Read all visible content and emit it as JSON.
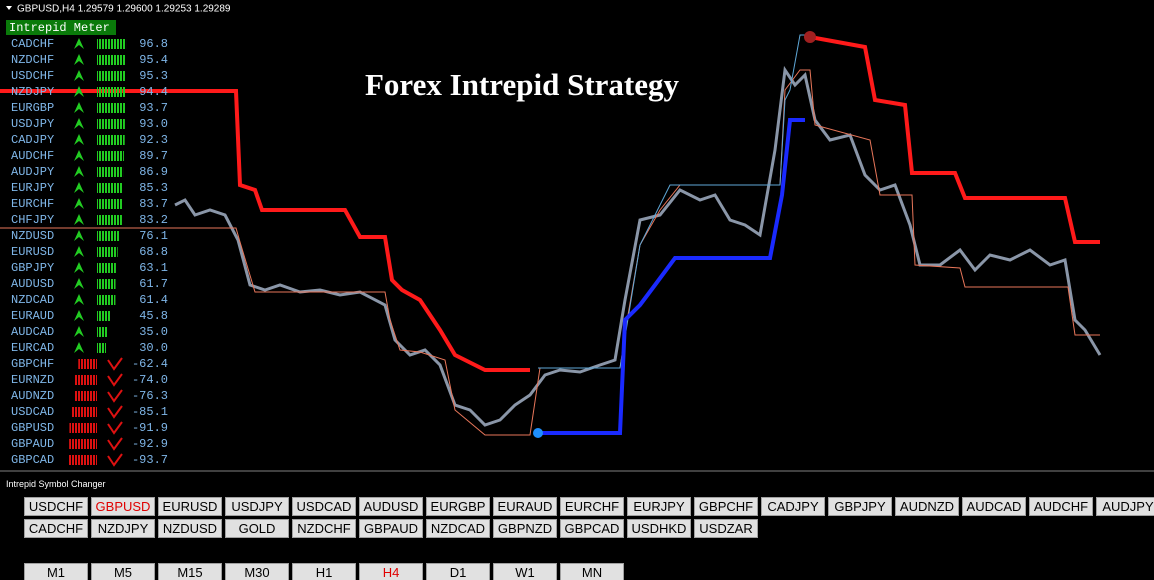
{
  "header": "GBPUSD,H4  1.29579 1.29600 1.29253 1.29289",
  "title": "Forex Intrepid Strategy",
  "meter": {
    "title": "Intrepid Meter",
    "rows": [
      {
        "symbol": "CADCHF",
        "value": "96.8"
      },
      {
        "symbol": "NZDCHF",
        "value": "95.4"
      },
      {
        "symbol": "USDCHF",
        "value": "95.3"
      },
      {
        "symbol": "NZDJPY",
        "value": "94.4"
      },
      {
        "symbol": "EURGBP",
        "value": "93.7"
      },
      {
        "symbol": "USDJPY",
        "value": "93.0"
      },
      {
        "symbol": "CADJPY",
        "value": "92.3"
      },
      {
        "symbol": "AUDCHF",
        "value": "89.7"
      },
      {
        "symbol": "AUDJPY",
        "value": "86.9"
      },
      {
        "symbol": "EURJPY",
        "value": "85.3"
      },
      {
        "symbol": "EURCHF",
        "value": "83.7"
      },
      {
        "symbol": "CHFJPY",
        "value": "83.2"
      },
      {
        "symbol": "NZDUSD",
        "value": "76.1"
      },
      {
        "symbol": "EURUSD",
        "value": "68.8"
      },
      {
        "symbol": "GBPJPY",
        "value": "63.1"
      },
      {
        "symbol": "AUDUSD",
        "value": "61.7"
      },
      {
        "symbol": "NZDCAD",
        "value": "61.4"
      },
      {
        "symbol": "EURAUD",
        "value": "45.8"
      },
      {
        "symbol": "AUDCAD",
        "value": "35.0"
      },
      {
        "symbol": "EURCAD",
        "value": "30.0"
      },
      {
        "symbol": "GBPCHF",
        "value": "-62.4"
      },
      {
        "symbol": "EURNZD",
        "value": "-74.0"
      },
      {
        "symbol": "AUDNZD",
        "value": "-76.3"
      },
      {
        "symbol": "USDCAD",
        "value": "-85.1"
      },
      {
        "symbol": "GBPUSD",
        "value": "-91.9"
      },
      {
        "symbol": "GBPAUD",
        "value": "-92.9"
      },
      {
        "symbol": "GBPCAD",
        "value": "-93.7"
      }
    ]
  },
  "changer": {
    "title": "Intrepid Symbol Changer",
    "symbols": [
      [
        "USDCHF",
        "GBPUSD",
        "EURUSD",
        "USDJPY",
        "USDCAD",
        "AUDUSD",
        "EURGBP",
        "EURAUD",
        "EURCHF",
        "EURJPY",
        "GBPCHF",
        "CADJPY",
        "GBPJPY",
        "AUDNZD",
        "AUDCAD",
        "AUDCHF",
        "AUDJPY"
      ],
      [
        "CADCHF",
        "NZDJPY",
        "NZDUSD",
        "GOLD",
        "NZDCHF",
        "GBPAUD",
        "NZDCAD",
        "GBPNZD",
        "GBPCAD",
        "USDHKD",
        "USDZAR"
      ]
    ],
    "selected_symbol": [
      0,
      1
    ],
    "timeframes": [
      "M1",
      "M5",
      "M15",
      "M30",
      "H1",
      "H4",
      "D1",
      "W1",
      "MN"
    ],
    "selected_timeframe": 5
  }
}
